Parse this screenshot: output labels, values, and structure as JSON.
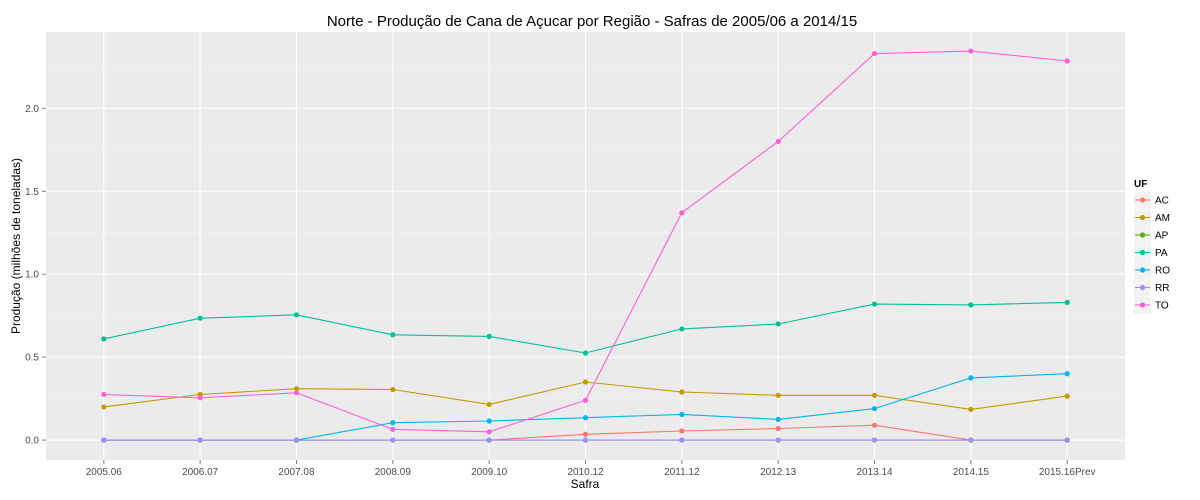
{
  "chart_data": {
    "type": "line",
    "title": "Norte  - Produção de Cana de Açucar por Região - Safras de 2005/06 a 2014/15",
    "xlabel": "Safra",
    "ylabel": "Produção (milhões de toneladas)",
    "ylim": [
      -0.12,
      2.46
    ],
    "yticks": [
      0.0,
      0.5,
      1.0,
      1.5,
      2.0
    ],
    "ytick_labels": [
      "0.0",
      "0.5",
      "1.0",
      "1.5",
      "2.0"
    ],
    "grid": true,
    "legend": {
      "title": "UF",
      "position": "right"
    },
    "categories": [
      "2005.06",
      "2006.07",
      "2007.08",
      "2008.09",
      "2009.10",
      "2010.12",
      "2011.12",
      "2012.13",
      "2013.14",
      "2014.15",
      "2015.16Prev"
    ],
    "series": [
      {
        "name": "AC",
        "color": "#F8766D",
        "values": [
          0,
          0,
          0,
          0,
          0,
          0.035,
          0.055,
          0.07,
          0.09,
          0,
          0
        ]
      },
      {
        "name": "AM",
        "color": "#C49A00",
        "values": [
          0.2,
          0.275,
          0.31,
          0.305,
          0.215,
          0.35,
          0.29,
          0.27,
          0.27,
          0.185,
          0.265
        ]
      },
      {
        "name": "AP",
        "color": "#53B400",
        "values": [
          0,
          0,
          0,
          0,
          0,
          0,
          0,
          0,
          0,
          0,
          0
        ]
      },
      {
        "name": "PA",
        "color": "#00C094",
        "values": [
          0.61,
          0.735,
          0.755,
          0.635,
          0.625,
          0.525,
          0.67,
          0.7,
          0.82,
          0.815,
          0.83
        ]
      },
      {
        "name": "RO",
        "color": "#00B6EB",
        "values": [
          0,
          0,
          0,
          0.105,
          0.115,
          0.135,
          0.155,
          0.125,
          0.19,
          0.375,
          0.4
        ]
      },
      {
        "name": "RR",
        "color": "#A58AFF",
        "values": [
          0,
          0,
          0,
          0,
          0,
          0,
          0,
          0,
          0,
          0,
          0
        ]
      },
      {
        "name": "TO",
        "color": "#FB61D7",
        "values": [
          0.275,
          0.255,
          0.285,
          0.065,
          0.05,
          0.24,
          1.37,
          1.8,
          2.33,
          2.345,
          2.285
        ]
      }
    ]
  }
}
